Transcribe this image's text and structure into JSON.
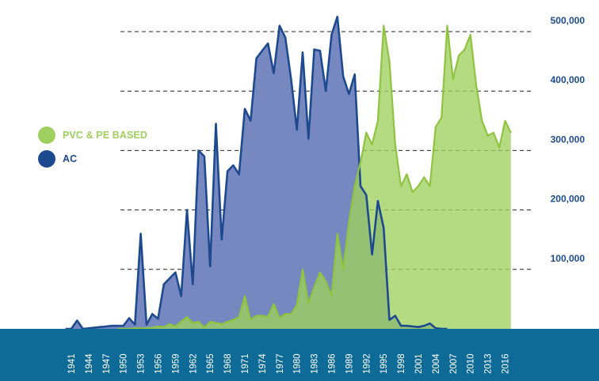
{
  "chart_data": {
    "type": "area",
    "title": "",
    "xlabel": "",
    "ylabel": "",
    "xlim": [
      1941,
      2018
    ],
    "ylim": [
      0,
      500000
    ],
    "y_axis_position": "right",
    "grid": "dashed horizontal lines",
    "legend_position": "left",
    "x_tick_labels": [
      "1941",
      "1944",
      "1947",
      "1950",
      "1953",
      "1956",
      "1959",
      "1962",
      "1965",
      "1968",
      "1971",
      "1974",
      "1977",
      "1980",
      "1983",
      "1986",
      "1989",
      "1992",
      "1995",
      "1998",
      "2001",
      "2004",
      "2007",
      "2010",
      "2013",
      "2016"
    ],
    "y_tick_labels": [
      {
        "value": 100000,
        "label": "100,000"
      },
      {
        "value": 200000,
        "label": "200,000"
      },
      {
        "value": 300000,
        "label": "300,000"
      },
      {
        "value": 400000,
        "label": "400,000"
      },
      {
        "value": 500000,
        "label": "500,000"
      }
    ],
    "series": [
      {
        "name": "AC",
        "color": "#1d4a8f",
        "fill": "#7688bf",
        "x": [
          1940,
          1941,
          1942,
          1943,
          1947,
          1948,
          1950,
          1951,
          1952,
          1953,
          1954,
          1955,
          1956,
          1957,
          1958,
          1959,
          1960,
          1961,
          1962,
          1963,
          1964,
          1965,
          1966,
          1967,
          1968,
          1969,
          1970,
          1971,
          1972,
          1973,
          1974,
          1975,
          1976,
          1977,
          1978,
          1979,
          1980,
          1981,
          1982,
          1983,
          1984,
          1985,
          1986,
          1987,
          1988,
          1989,
          1990,
          1991,
          1992,
          1993,
          1994,
          1995,
          1996,
          1997,
          1998,
          1999,
          2000,
          2001,
          2002,
          2003,
          2004,
          2005,
          2006
        ],
        "y": [
          0,
          0,
          14000,
          0,
          4000,
          5000,
          5000,
          18000,
          7000,
          160000,
          7000,
          25000,
          17000,
          75000,
          85000,
          95000,
          55000,
          200000,
          75000,
          300000,
          290000,
          105000,
          345000,
          150000,
          265000,
          275000,
          260000,
          370000,
          350000,
          455000,
          468000,
          480000,
          430000,
          510000,
          490000,
          420000,
          335000,
          465000,
          320000,
          470000,
          468000,
          400000,
          495000,
          525000,
          425000,
          395000,
          428000,
          240000,
          225000,
          125000,
          215000,
          170000,
          15000,
          22000,
          5000,
          5000,
          4000,
          3000,
          5000,
          9000,
          1000,
          0,
          0
        ]
      },
      {
        "name": "PVC & PE BASED",
        "color": "#8ec43f",
        "fill": "#9fcf5f",
        "x": [
          1949,
          1950,
          1951,
          1952,
          1953,
          1954,
          1955,
          1956,
          1957,
          1958,
          1959,
          1960,
          1961,
          1962,
          1963,
          1964,
          1965,
          1966,
          1967,
          1968,
          1969,
          1970,
          1971,
          1972,
          1973,
          1974,
          1975,
          1976,
          1977,
          1978,
          1979,
          1980,
          1981,
          1982,
          1983,
          1984,
          1985,
          1986,
          1987,
          1988,
          1989,
          1990,
          1991,
          1992,
          1993,
          1994,
          1995,
          1996,
          1997,
          1998,
          1999,
          2000,
          2001,
          2002,
          2003,
          2004,
          2005,
          2006,
          2007,
          2008,
          2009,
          2010,
          2011,
          2012,
          2013,
          2014,
          2015,
          2016,
          2017
        ],
        "y": [
          0,
          0,
          0,
          1000,
          1000,
          1000,
          2000,
          4000,
          3000,
          8000,
          4000,
          12000,
          20000,
          10000,
          12000,
          2000,
          12000,
          10000,
          8000,
          12000,
          15000,
          20000,
          55000,
          15000,
          22000,
          22000,
          20000,
          42000,
          18000,
          25000,
          25000,
          40000,
          100000,
          43000,
          70000,
          95000,
          80000,
          55000,
          160000,
          100000,
          180000,
          240000,
          280000,
          330000,
          310000,
          350000,
          510000,
          450000,
          310000,
          240000,
          260000,
          230000,
          240000,
          255000,
          240000,
          340000,
          355000,
          510000,
          420000,
          460000,
          470000,
          495000,
          410000,
          350000,
          325000,
          330000,
          305000,
          350000,
          330000
        ]
      }
    ]
  }
}
